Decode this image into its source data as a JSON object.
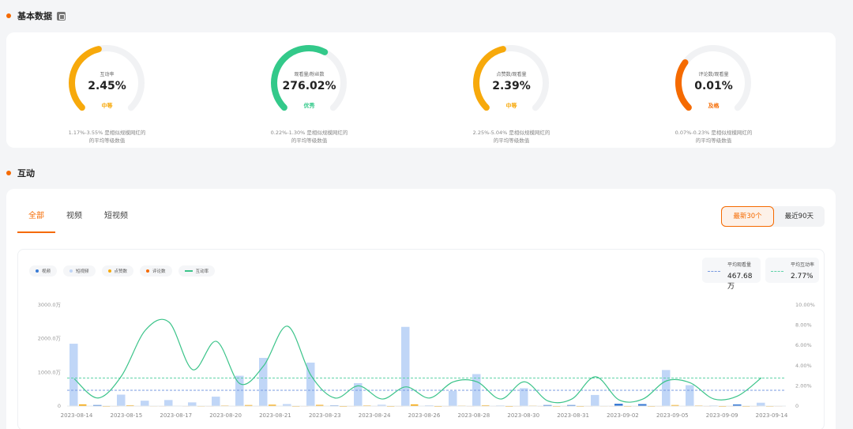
{
  "sections": {
    "basic": "基本数据",
    "interaction": "互动"
  },
  "gauges": [
    {
      "label": "互动率",
      "value": "2.45%",
      "level": "中等",
      "desc1": "1.17%-3.55% 是相似规模网红的",
      "desc2": "的平均等级数值",
      "color": "#f7a90b",
      "fraction": 0.45
    },
    {
      "label": "观看量/粉丝数",
      "value": "276.02%",
      "level": "优秀",
      "desc1": "0.22%-1.30% 是相似规模网红的",
      "desc2": "的平均等级数值",
      "color": "#33c98a",
      "fraction": 0.6
    },
    {
      "label": "点赞数/观看量",
      "value": "2.39%",
      "level": "中等",
      "desc1": "2.25%-5.04% 是相似规模网红的",
      "desc2": "的平均等级数值",
      "color": "#f7a90b",
      "fraction": 0.45
    },
    {
      "label": "评论数/观看量",
      "value": "0.01%",
      "level": "及格",
      "desc1": "0.07%-0.23% 是相似规模网红的",
      "desc2": "的平均等级数值",
      "color": "#f56a00",
      "fraction": 0.3
    }
  ],
  "tabs": [
    "全部",
    "视频",
    "短视频"
  ],
  "range_buttons": [
    "最新30个",
    "最近90天"
  ],
  "legend": [
    {
      "label": "视频",
      "color": "#3a7bd5",
      "kind": "dot"
    },
    {
      "label": "短视频",
      "color": "#c0d6f7",
      "kind": "dot"
    },
    {
      "label": "点赞数",
      "color": "#f7a90b",
      "kind": "dot"
    },
    {
      "label": "评论数",
      "color": "#f56a00",
      "kind": "dot"
    },
    {
      "label": "互动率",
      "color": "#3cc48a",
      "kind": "line"
    }
  ],
  "averages": {
    "views": {
      "label": "平均观看量",
      "value": "467.68万",
      "color": "#7a9be0"
    },
    "rate": {
      "label": "平均互动率",
      "value": "2.77%",
      "color": "#5fd3a8"
    }
  },
  "chart_data": {
    "type": "bar",
    "ylim_left": [
      0,
      3000
    ],
    "ylim_right": [
      0,
      10
    ],
    "y_left_ticks": [
      "0",
      "1000.0万",
      "2000.0万",
      "3000.0万"
    ],
    "y_right_ticks": [
      "0",
      "2.00%",
      "4.00%",
      "6.00%",
      "8.00%",
      "10.00%"
    ],
    "x_tick_labels": [
      "2023-08-14",
      "2023-08-15",
      "2023-08-17",
      "2023-08-20",
      "2023-08-21",
      "2023-08-23",
      "2023-08-24",
      "2023-08-26",
      "2023-08-28",
      "2023-08-30",
      "2023-08-31",
      "2023-09-02",
      "2023-09-05",
      "2023-09-09",
      "2023-09-14"
    ],
    "views": [
      1850,
      30,
      340,
      160,
      180,
      110,
      280,
      900,
      1430,
      60,
      1290,
      20,
      680,
      40,
      2350,
      25,
      450,
      950,
      20,
      530,
      30,
      30,
      330,
      70,
      60,
      1070,
      620,
      20,
      50,
      100
    ],
    "video_type": [
      "s",
      "v",
      "s",
      "s",
      "s",
      "s",
      "s",
      "s",
      "s",
      "s",
      "s",
      "v",
      "s",
      "s",
      "s",
      "s",
      "s",
      "s",
      "s",
      "s",
      "v",
      "v",
      "s",
      "v",
      "v",
      "s",
      "s",
      "s",
      "v",
      "s"
    ],
    "likes": [
      50,
      5,
      25,
      10,
      12,
      8,
      18,
      30,
      40,
      5,
      35,
      3,
      20,
      4,
      50,
      3,
      15,
      25,
      3,
      15,
      4,
      4,
      10,
      5,
      5,
      30,
      18,
      3,
      5,
      6
    ],
    "comments": [
      3,
      1,
      2,
      1,
      1,
      1,
      2,
      2,
      3,
      1,
      3,
      1,
      2,
      1,
      3,
      1,
      1,
      2,
      1,
      1,
      1,
      1,
      1,
      1,
      1,
      2,
      1,
      1,
      1,
      1
    ],
    "rate": [
      2.7,
      0.8,
      3.0,
      7.5,
      8.3,
      3.6,
      6.4,
      2.2,
      4.0,
      7.9,
      3.0,
      0.8,
      2.0,
      0.7,
      1.9,
      0.8,
      2.4,
      2.4,
      0.7,
      2.4,
      0.5,
      0.7,
      2.9,
      0.6,
      0.7,
      2.5,
      2.3,
      0.7,
      1.0,
      2.8
    ],
    "avg_views": 467.68,
    "avg_rate": 2.77
  }
}
